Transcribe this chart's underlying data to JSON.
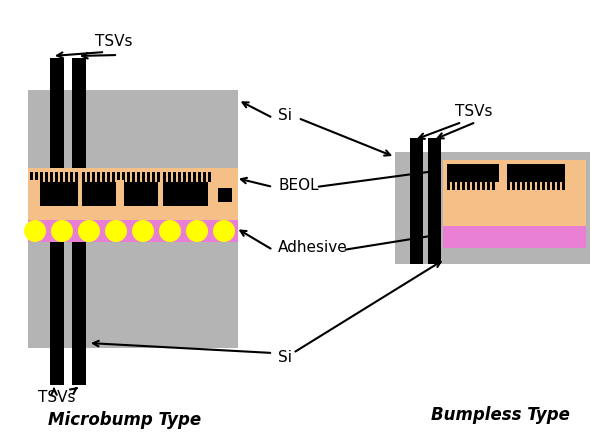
{
  "bg_color": "#ffffff",
  "gray_color": "#b4b4b4",
  "peach_color": "#f5c088",
  "pink_color": "#e87fd4",
  "yellow_color": "#ffff00",
  "black_color": "#000000",
  "title_microbump": "Microbump Type",
  "title_bumpless": "Bumpless Type",
  "label_tsvs": "TSVs",
  "label_si": "Si",
  "label_beol": "BEOL",
  "label_adhesive": "Adhesive",
  "figsize": [
    6.0,
    4.37
  ],
  "dpi": 100
}
